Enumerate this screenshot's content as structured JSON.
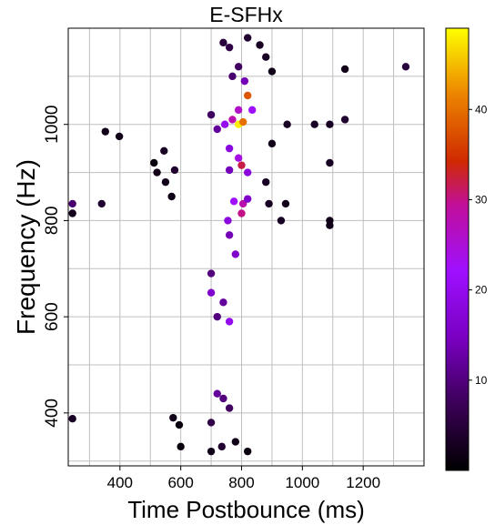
{
  "chart_data": {
    "type": "scatter",
    "title": "E-SFHx",
    "xlabel": "Time Postbounce (ms)",
    "ylabel": "Frequency (Hz)",
    "xlim": [
      230,
      1400
    ],
    "ylim": [
      290,
      1200
    ],
    "xticks": [
      400,
      600,
      800,
      1000,
      1200
    ],
    "yticks": [
      400,
      600,
      800,
      1000
    ],
    "grid": true,
    "colormap": "gnuplot",
    "colorbar": {
      "min": 0,
      "max": 49,
      "ticks": [
        10,
        20,
        30,
        40
      ]
    },
    "points": [
      [
        244,
        388,
        3
      ],
      [
        244,
        835,
        9
      ],
      [
        244,
        815,
        2
      ],
      [
        340,
        835,
        4
      ],
      [
        352,
        985,
        2
      ],
      [
        398,
        975,
        2
      ],
      [
        512,
        920,
        1
      ],
      [
        522,
        900,
        2
      ],
      [
        545,
        945,
        3
      ],
      [
        550,
        880,
        2
      ],
      [
        580,
        905,
        4
      ],
      [
        570,
        850,
        2
      ],
      [
        575,
        390,
        2
      ],
      [
        595,
        375,
        1
      ],
      [
        600,
        330,
        1
      ],
      [
        1090,
        1000,
        3
      ],
      [
        1090,
        920,
        3
      ],
      [
        1090,
        800,
        2
      ],
      [
        1090,
        790,
        2
      ],
      [
        1040,
        1000,
        3
      ],
      [
        1140,
        1115,
        2
      ],
      [
        1140,
        1010,
        4
      ],
      [
        1340,
        1120,
        5
      ],
      [
        860,
        1165,
        3
      ],
      [
        880,
        1140,
        3
      ],
      [
        900,
        1110,
        2
      ],
      [
        950,
        1000,
        3
      ],
      [
        900,
        960,
        2
      ],
      [
        880,
        880,
        3
      ],
      [
        930,
        800,
        3
      ],
      [
        945,
        835,
        2
      ],
      [
        890,
        835,
        3
      ],
      [
        700,
        1020,
        8
      ],
      [
        720,
        990,
        12
      ],
      [
        745,
        1000,
        20
      ],
      [
        770,
        1010,
        28
      ],
      [
        790,
        1000,
        48
      ],
      [
        805,
        1005,
        40
      ],
      [
        790,
        1030,
        26
      ],
      [
        820,
        1060,
        38
      ],
      [
        810,
        1090,
        14
      ],
      [
        835,
        1030,
        22
      ],
      [
        760,
        950,
        18
      ],
      [
        790,
        930,
        24
      ],
      [
        800,
        915,
        32
      ],
      [
        820,
        900,
        18
      ],
      [
        760,
        905,
        14
      ],
      [
        775,
        840,
        22
      ],
      [
        800,
        815,
        30
      ],
      [
        805,
        835,
        28
      ],
      [
        820,
        845,
        16
      ],
      [
        755,
        800,
        18
      ],
      [
        760,
        770,
        14
      ],
      [
        780,
        730,
        16
      ],
      [
        700,
        690,
        10
      ],
      [
        700,
        650,
        16
      ],
      [
        740,
        630,
        12
      ],
      [
        720,
        600,
        10
      ],
      [
        760,
        590,
        20
      ],
      [
        720,
        440,
        12
      ],
      [
        740,
        430,
        10
      ],
      [
        760,
        410,
        8
      ],
      [
        700,
        380,
        6
      ],
      [
        735,
        330,
        4
      ],
      [
        700,
        320,
        2
      ],
      [
        780,
        340,
        2
      ],
      [
        820,
        320,
        1
      ],
      [
        740,
        1170,
        5
      ],
      [
        760,
        1160,
        6
      ],
      [
        820,
        1180,
        4
      ],
      [
        790,
        1120,
        8
      ],
      [
        770,
        1100,
        9
      ]
    ]
  }
}
